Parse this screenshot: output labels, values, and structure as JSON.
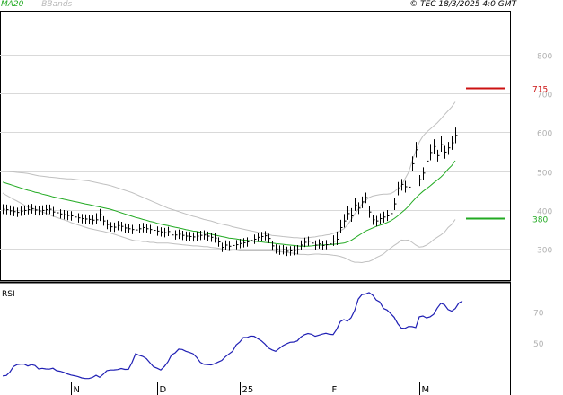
{
  "legend": {
    "ma_label": "MA20",
    "bbands_label": "BBands"
  },
  "copyright": "© TEC 18/3/2025 4:0 GMT",
  "colors": {
    "ma": "#22aa22",
    "bbands": "#c0c0c0",
    "rsi": "#1f1fb4",
    "price": "#000000",
    "target_line": "#cc1111",
    "support_line": "#22aa22",
    "grid": "#d9d9d9",
    "frame": "#000000"
  },
  "chart_data": [
    {
      "type": "ohlc",
      "title": "",
      "ylim": [
        220,
        910
      ],
      "y_ticks": [
        300,
        400,
        500,
        600,
        700,
        800
      ],
      "y_tick_labels": [
        "300",
        "400",
        "500",
        "600",
        "700",
        "800"
      ],
      "x_tick_labels": [
        "N",
        "D",
        "25",
        "F",
        "M"
      ],
      "x_tick_positions": [
        19,
        43,
        66,
        91,
        116
      ],
      "n_bars": 127,
      "close": [
        402,
        401,
        398,
        396,
        394,
        397,
        399,
        401,
        403,
        400,
        398,
        399,
        401,
        402,
        395,
        393,
        390,
        388,
        386,
        385,
        382,
        380,
        378,
        377,
        376,
        374,
        375,
        388,
        372,
        363,
        357,
        356,
        360,
        358,
        354,
        352,
        350,
        349,
        352,
        355,
        352,
        350,
        348,
        346,
        344,
        342,
        345,
        336,
        336,
        338,
        335,
        333,
        332,
        331,
        333,
        335,
        336,
        333,
        330,
        328,
        318,
        304,
        310,
        307,
        309,
        311,
        314,
        316,
        318,
        322,
        325,
        330,
        332,
        334,
        327,
        308,
        300,
        297,
        298,
        294,
        295,
        296,
        298,
        310,
        317,
        320,
        315,
        310,
        313,
        309,
        311,
        313,
        320,
        325,
        355,
        372,
        391,
        385,
        413,
        405,
        421,
        432,
        395,
        375,
        372,
        378,
        382,
        385,
        391,
        416,
        455,
        466,
        460,
        459,
        519,
        555,
        478,
        495,
        526,
        548,
        563,
        540,
        568,
        549,
        560,
        573,
        592
      ],
      "high": [
        415,
        414,
        412,
        408,
        406,
        409,
        411,
        414,
        416,
        412,
        410,
        412,
        414,
        414,
        408,
        405,
        402,
        400,
        398,
        397,
        394,
        392,
        390,
        389,
        388,
        386,
        392,
        403,
        384,
        375,
        369,
        368,
        372,
        370,
        366,
        364,
        362,
        361,
        364,
        367,
        364,
        362,
        360,
        358,
        356,
        354,
        357,
        348,
        348,
        350,
        347,
        345,
        344,
        343,
        345,
        347,
        348,
        345,
        342,
        340,
        330,
        316,
        322,
        319,
        321,
        323,
        326,
        328,
        330,
        334,
        337,
        342,
        344,
        346,
        339,
        320,
        312,
        309,
        310,
        306,
        307,
        308,
        310,
        322,
        329,
        332,
        327,
        322,
        325,
        321,
        323,
        325,
        335,
        345,
        375,
        390,
        410,
        405,
        430,
        420,
        435,
        445,
        410,
        388,
        385,
        392,
        396,
        400,
        405,
        432,
        472,
        480,
        475,
        472,
        538,
        575,
        490,
        510,
        545,
        570,
        582,
        555,
        590,
        565,
        575,
        590,
        612
      ],
      "low": [
        390,
        389,
        386,
        384,
        382,
        385,
        387,
        389,
        391,
        388,
        386,
        387,
        389,
        390,
        383,
        381,
        378,
        376,
        374,
        373,
        370,
        368,
        366,
        365,
        364,
        362,
        363,
        372,
        360,
        351,
        345,
        344,
        348,
        346,
        342,
        340,
        338,
        337,
        340,
        343,
        340,
        338,
        336,
        334,
        332,
        330,
        333,
        324,
        324,
        326,
        323,
        321,
        320,
        319,
        321,
        323,
        324,
        321,
        318,
        316,
        306,
        292,
        298,
        295,
        297,
        299,
        302,
        304,
        306,
        310,
        313,
        318,
        320,
        322,
        315,
        296,
        288,
        285,
        286,
        282,
        283,
        284,
        286,
        298,
        305,
        308,
        303,
        298,
        301,
        297,
        299,
        301,
        308,
        310,
        340,
        355,
        375,
        370,
        398,
        390,
        405,
        418,
        380,
        362,
        358,
        364,
        368,
        372,
        377,
        400,
        438,
        450,
        445,
        444,
        500,
        535,
        462,
        478,
        508,
        528,
        545,
        525,
        550,
        532,
        542,
        555,
        572
      ],
      "ma20": [
        472,
        469,
        466,
        463,
        460,
        457,
        454,
        451,
        449,
        446,
        444,
        441,
        439,
        437,
        434,
        432,
        430,
        428,
        426,
        424,
        422,
        420,
        418,
        416,
        414,
        412,
        410,
        408,
        406,
        404,
        402,
        399,
        396,
        393,
        390,
        387,
        384,
        381,
        379,
        376,
        374,
        371,
        369,
        366,
        364,
        362,
        360,
        358,
        356,
        354,
        352,
        350,
        348,
        346,
        345,
        343,
        341,
        340,
        338,
        336,
        334,
        332,
        330,
        328,
        327,
        326,
        324,
        323,
        322,
        321,
        320,
        319,
        318,
        317,
        316,
        315,
        314,
        313,
        312,
        311,
        310,
        309,
        308,
        307,
        307,
        307,
        308,
        309,
        310,
        310,
        311,
        311,
        312,
        313,
        314,
        315,
        318,
        322,
        328,
        334,
        340,
        346,
        350,
        354,
        358,
        361,
        364,
        368,
        372,
        378,
        385,
        393,
        401,
        410,
        421,
        431,
        440,
        448,
        455,
        462,
        470,
        477,
        485,
        494,
        505,
        514,
        527
      ],
      "bb_upper": [
        500,
        500,
        499,
        498,
        497,
        496,
        495,
        494,
        492,
        490,
        488,
        487,
        486,
        485,
        484,
        483,
        482,
        481,
        480,
        480,
        479,
        478,
        477,
        476,
        475,
        473,
        471,
        469,
        467,
        465,
        463,
        460,
        457,
        454,
        451,
        448,
        445,
        441,
        437,
        433,
        429,
        425,
        421,
        417,
        413,
        409,
        405,
        402,
        399,
        396,
        393,
        390,
        387,
        384,
        382,
        379,
        376,
        374,
        372,
        369,
        366,
        364,
        362,
        360,
        357,
        355,
        353,
        351,
        349,
        347,
        345,
        343,
        341,
        339,
        337,
        335,
        334,
        333,
        332,
        331,
        330,
        329,
        329,
        328,
        328,
        329,
        330,
        331,
        333,
        334,
        336,
        337,
        340,
        343,
        347,
        352,
        362,
        375,
        390,
        402,
        415,
        425,
        432,
        436,
        438,
        440,
        441,
        441,
        442,
        447,
        455,
        463,
        480,
        497,
        525,
        552,
        575,
        590,
        600,
        608,
        616,
        624,
        634,
        645,
        655,
        665,
        678
      ],
      "bb_lower": [
        444,
        438,
        433,
        428,
        423,
        418,
        413,
        408,
        406,
        402,
        400,
        395,
        392,
        389,
        384,
        381,
        378,
        375,
        372,
        368,
        365,
        362,
        359,
        356,
        353,
        351,
        349,
        347,
        345,
        343,
        341,
        338,
        335,
        332,
        329,
        326,
        323,
        321,
        321,
        319,
        319,
        317,
        317,
        315,
        315,
        315,
        315,
        314,
        313,
        312,
        311,
        310,
        309,
        308,
        308,
        307,
        306,
        306,
        304,
        303,
        302,
        300,
        298,
        296,
        297,
        297,
        295,
        295,
        295,
        295,
        295,
        295,
        295,
        295,
        295,
        295,
        294,
        293,
        292,
        291,
        290,
        289,
        287,
        286,
        286,
        285,
        286,
        287,
        287,
        286,
        286,
        285,
        284,
        283,
        281,
        278,
        274,
        269,
        266,
        266,
        265,
        267,
        268,
        272,
        278,
        282,
        287,
        295,
        302,
        309,
        315,
        323,
        322,
        323,
        317,
        310,
        305,
        306,
        310,
        316,
        324,
        330,
        336,
        343,
        355,
        363,
        376
      ],
      "annotations": [
        {
          "label": "715",
          "value": 715,
          "color": "#cc1111"
        },
        {
          "label": "380",
          "value": 380,
          "color": "#22aa22"
        }
      ]
    },
    {
      "type": "line",
      "title": "",
      "ylabel": "RSI",
      "ylim": [
        25,
        87
      ],
      "y_ticks": [
        70,
        50
      ],
      "y_tick_labels": [
        "70",
        "50"
      ],
      "x_tick_labels": [
        "N",
        "D",
        "25",
        "F",
        "M"
      ],
      "x_tick_positions": [
        19,
        43,
        66,
        91,
        116
      ],
      "series": [
        {
          "values": [
            28.6,
            28.9,
            31.1,
            34.7,
            35.9,
            36.2,
            36.2,
            35.0,
            35.9,
            35.3,
            33.1,
            33.5,
            33.1,
            33.0,
            33.6,
            32.0,
            31.6,
            30.9,
            29.9,
            29.2,
            28.7,
            28.1,
            27.3,
            26.9,
            26.9,
            27.6,
            29.0,
            27.7,
            29.7,
            32.0,
            32.4,
            32.5,
            32.7,
            33.4,
            32.8,
            32.9,
            37.2,
            42.9,
            41.9,
            41.2,
            39.8,
            37.1,
            34.5,
            33.6,
            32.4,
            34.7,
            37.7,
            42.2,
            43.5,
            45.9,
            45.7,
            44.5,
            43.8,
            42.9,
            40.6,
            37.4,
            36.1,
            35.9,
            35.7,
            36.5,
            37.6,
            38.6,
            41.0,
            42.8,
            44.5,
            48.6,
            50.5,
            53.4,
            53.4,
            54.4,
            54.2,
            52.7,
            51.3,
            49.2,
            46.7,
            45.4,
            44.5,
            46.3,
            48.1,
            49.3,
            50.3,
            50.5,
            51.2,
            53.7,
            55.2,
            56.0,
            55.5,
            54.2,
            54.9,
            55.6,
            56.1,
            55.5,
            55.3,
            58.7,
            63.7,
            65.0,
            64.0,
            66.2,
            70.9,
            78.2,
            81.1,
            81.5,
            82.4,
            80.8,
            77.6,
            76.4,
            72.2,
            71.2,
            68.9,
            66.5,
            62.3,
            59.5,
            59.3,
            60.5,
            60.4,
            59.8,
            66.8,
            67.3,
            66.1,
            66.8,
            68.4,
            72.4,
            75.5,
            74.6,
            71.5,
            70.4,
            72.1,
            75.7,
            76.9
          ]
        }
      ]
    }
  ]
}
